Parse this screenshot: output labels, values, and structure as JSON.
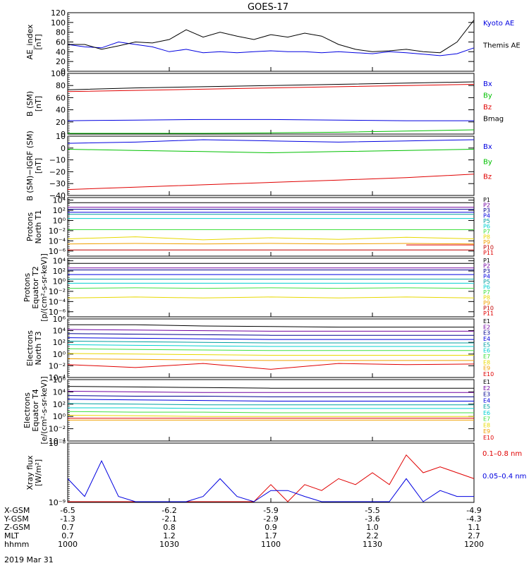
{
  "title": "GOES-17",
  "date_label": "2019 Mar 31",
  "colors": {
    "black": "#000000",
    "blue": "#0000e0",
    "green": "#00c000",
    "red": "#e00000",
    "navy": "#000090",
    "purple": "#7000a0",
    "teal": "#00a0a0",
    "cyan": "#00d0d0",
    "lime": "#40e040",
    "yellow": "#e8d800",
    "orange": "#f0a000",
    "darkred": "#c00000"
  },
  "chart_data": [
    {
      "type": "line",
      "ylabel": [
        "AE_index",
        "[nT]"
      ],
      "yticks": [
        "0",
        "20",
        "40",
        "60",
        "80",
        "100",
        "120"
      ],
      "ylim": [
        0,
        120
      ],
      "x": [
        0,
        5,
        10,
        15,
        20,
        25,
        30,
        35,
        40,
        45,
        50,
        55,
        60,
        65,
        70,
        75,
        80,
        85,
        90,
        95,
        100,
        105,
        110,
        115,
        120
      ],
      "series": [
        {
          "name": "Kyoto AE",
          "color": "blue",
          "values": [
            55,
            50,
            48,
            60,
            55,
            50,
            40,
            45,
            38,
            40,
            38,
            40,
            42,
            40,
            40,
            38,
            40,
            38,
            36,
            40,
            38,
            35,
            32,
            36,
            48
          ]
        },
        {
          "name": "Themis AE",
          "color": "black",
          "values": [
            55,
            55,
            45,
            52,
            60,
            58,
            65,
            85,
            70,
            80,
            72,
            65,
            75,
            70,
            78,
            72,
            55,
            45,
            40,
            42,
            45,
            40,
            38,
            60,
            105
          ]
        }
      ]
    },
    {
      "type": "line",
      "ylabel": [
        "B (SM)",
        "[nT]"
      ],
      "yticks": [
        "0",
        "20",
        "40",
        "60",
        "80",
        "100"
      ],
      "ylim": [
        0,
        100
      ],
      "x": [
        0,
        20,
        40,
        60,
        80,
        100,
        120
      ],
      "series": [
        {
          "name": "Bx",
          "color": "blue",
          "values": [
            22,
            23,
            24,
            24,
            23,
            22,
            22
          ]
        },
        {
          "name": "By",
          "color": "green",
          "values": [
            0,
            0,
            1,
            2,
            3,
            5,
            7
          ]
        },
        {
          "name": "Bz",
          "color": "red",
          "values": [
            70,
            72,
            74,
            76,
            78,
            80,
            82
          ]
        },
        {
          "name": "Bmag",
          "color": "black",
          "values": [
            73,
            76,
            78,
            80,
            82,
            84,
            86
          ]
        }
      ]
    },
    {
      "type": "line",
      "ylabel": [
        "B (SM)−IGRF (SM)",
        "[nT]"
      ],
      "yticks": [
        "−40",
        "−30",
        "−20",
        "−10",
        "0",
        "10"
      ],
      "ylim": [
        -40,
        10
      ],
      "x": [
        0,
        20,
        40,
        60,
        80,
        100,
        120
      ],
      "series": [
        {
          "name": "Bx",
          "color": "blue",
          "values": [
            4,
            5,
            7,
            6,
            5,
            6,
            7
          ]
        },
        {
          "name": "By",
          "color": "green",
          "values": [
            -1,
            -2,
            -3,
            -4,
            -3,
            -2,
            -1
          ]
        },
        {
          "name": "Bz",
          "color": "red",
          "values": [
            -35,
            -33,
            -31,
            -29,
            -27,
            -25,
            -22
          ]
        }
      ]
    },
    {
      "type": "line",
      "scale": "log",
      "ylabel": [
        "Protons",
        "North T1"
      ],
      "yticks": [
        "10⁻⁶",
        "10⁻⁴",
        "10⁻²",
        "10⁰",
        "10²",
        "10⁴"
      ],
      "ylim": [
        -7,
        4.5
      ],
      "x": [
        0,
        20,
        40,
        60,
        80,
        100,
        120
      ],
      "series": [
        {
          "name": "P1",
          "color": "black",
          "values": [
            3.5,
            3.5,
            3.5,
            3.5,
            3.5,
            3.5,
            3.5
          ]
        },
        {
          "name": "P2",
          "color": "purple",
          "values": [
            2.6,
            2.6,
            2.6,
            2.6,
            2.6,
            2.6,
            2.6
          ]
        },
        {
          "name": "P3",
          "color": "navy",
          "values": [
            2.2,
            2.2,
            2.2,
            2.2,
            2.2,
            2.2,
            2.2
          ]
        },
        {
          "name": "P4",
          "color": "blue",
          "values": [
            1.6,
            1.6,
            1.6,
            1.6,
            1.6,
            1.6,
            1.6
          ]
        },
        {
          "name": "P5",
          "color": "teal",
          "values": [
            1.2,
            1.2,
            1.2,
            1.2,
            1.2,
            1.2,
            1.2
          ]
        },
        {
          "name": "P6",
          "color": "cyan",
          "values": [
            0.4,
            0.4,
            0.4,
            0.4,
            0.4,
            0.4,
            0.4
          ]
        },
        {
          "name": "P7",
          "color": "lime",
          "values": [
            -1.8,
            -1.8,
            -1.8,
            -1.8,
            -1.8,
            -1.8,
            -1.8
          ]
        },
        {
          "name": "P8",
          "color": "yellow",
          "values": [
            -3.6,
            -3.2,
            -3.8,
            -3.4,
            -3.7,
            -3.3,
            -3.6
          ]
        },
        {
          "name": "P9",
          "color": "orange",
          "values": [
            -4.6,
            -4.5,
            -4.6,
            -4.5,
            -4.6,
            -4.5,
            -4.6
          ]
        },
        {
          "name": "P10",
          "color": "darkred",
          "values": [
            -5.8,
            -5.8,
            -5.8,
            -5.8,
            -5.8,
            -5.8,
            -5.8
          ]
        },
        {
          "name": "P11",
          "color": "red",
          "values": [
            null,
            null,
            null,
            null,
            null,
            -4.8,
            -4.8
          ]
        }
      ]
    },
    {
      "type": "line",
      "scale": "log",
      "ylabel": [
        "Protons",
        "Equator T2",
        "[p/(cm²-s-sr-keV)]"
      ],
      "yticks": [
        "10⁻⁶",
        "10⁻⁴",
        "10⁻²",
        "10⁰",
        "10²",
        "10⁴"
      ],
      "ylim": [
        -7,
        4.5
      ],
      "x": [
        0,
        20,
        40,
        60,
        80,
        100,
        120
      ],
      "series": [
        {
          "name": "P1",
          "color": "black",
          "values": [
            3.5,
            3.5,
            3.5,
            3.5,
            3.5,
            3.5,
            3.5
          ]
        },
        {
          "name": "P2",
          "color": "purple",
          "values": [
            2.6,
            2.6,
            2.6,
            2.6,
            2.6,
            2.6,
            2.6
          ]
        },
        {
          "name": "P3",
          "color": "navy",
          "values": [
            2.2,
            2.2,
            2.2,
            2.2,
            2.2,
            2.2,
            2.2
          ]
        },
        {
          "name": "P4",
          "color": "blue",
          "values": [
            1.3,
            1.3,
            1.3,
            1.3,
            1.3,
            1.3,
            1.3
          ]
        },
        {
          "name": "P5",
          "color": "teal",
          "values": [
            0.4,
            0.4,
            0.4,
            0.4,
            0.4,
            0.4,
            0.4
          ]
        },
        {
          "name": "P6",
          "color": "cyan",
          "values": [
            -0.4,
            -0.4,
            -0.4,
            -0.4,
            -0.4,
            -0.4,
            -0.4
          ]
        },
        {
          "name": "P7",
          "color": "lime",
          "values": [
            -1.4,
            -1.3,
            -1.4,
            -1.3,
            -1.4,
            -1.3,
            -1.4
          ]
        },
        {
          "name": "P8",
          "color": "yellow",
          "values": [
            -3.3,
            -3.1,
            -3.3,
            -3.1,
            -3.3,
            -3.1,
            -3.3
          ]
        },
        {
          "name": "P9",
          "color": "orange",
          "values": [
            null,
            null,
            null,
            null,
            null,
            null,
            null
          ]
        },
        {
          "name": "P10",
          "color": "darkred",
          "values": [
            null,
            null,
            null,
            null,
            null,
            null,
            null
          ]
        },
        {
          "name": "P11",
          "color": "red",
          "values": [
            null,
            null,
            null,
            null,
            null,
            null,
            null
          ]
        }
      ]
    },
    {
      "type": "line",
      "scale": "log",
      "ylabel": [
        "Electrons",
        "North T3"
      ],
      "yticks": [
        "10⁻⁴",
        "10⁻²",
        "10⁰",
        "10²",
        "10⁴",
        "10⁶"
      ],
      "ylim": [
        -4,
        6
      ],
      "x": [
        0,
        20,
        40,
        60,
        80,
        100,
        120
      ],
      "series": [
        {
          "name": "E1",
          "color": "black",
          "values": [
            5.0,
            5.0,
            4.8,
            4.7,
            4.6,
            4.6,
            4.6
          ]
        },
        {
          "name": "E2",
          "color": "purple",
          "values": [
            4.2,
            4.1,
            4.0,
            3.9,
            3.9,
            3.9,
            3.9
          ]
        },
        {
          "name": "E3",
          "color": "navy",
          "values": [
            3.5,
            3.4,
            3.3,
            3.2,
            3.2,
            3.2,
            3.2
          ]
        },
        {
          "name": "E4",
          "color": "blue",
          "values": [
            2.8,
            2.7,
            2.6,
            2.5,
            2.5,
            2.5,
            2.5
          ]
        },
        {
          "name": "E5",
          "color": "teal",
          "values": [
            2.2,
            2.1,
            2.0,
            1.9,
            1.9,
            1.9,
            1.9
          ]
        },
        {
          "name": "E6",
          "color": "cyan",
          "values": [
            1.6,
            1.5,
            1.4,
            1.3,
            1.3,
            1.3,
            1.3
          ]
        },
        {
          "name": "E7",
          "color": "lime",
          "values": [
            0.9,
            0.8,
            0.7,
            0.6,
            0.6,
            0.6,
            0.6
          ]
        },
        {
          "name": "E8",
          "color": "yellow",
          "values": [
            0.1,
            0.0,
            -0.1,
            -0.2,
            -0.2,
            -0.2,
            -0.2
          ]
        },
        {
          "name": "E9",
          "color": "orange",
          "values": [
            -0.8,
            -0.9,
            -1.0,
            -1.1,
            -1.1,
            -1.1,
            -1.1
          ]
        },
        {
          "name": "E10",
          "color": "red",
          "values": [
            -1.8,
            -2.3,
            -1.6,
            -2.6,
            -1.6,
            -1.8,
            -1.7
          ]
        }
      ]
    },
    {
      "type": "line",
      "scale": "log",
      "ylabel": [
        "Electrons",
        "Equator T4",
        "[e/(cm²-s-sr-keV)]"
      ],
      "yticks": [
        "10⁻⁴",
        "10⁻²",
        "10⁰",
        "10²",
        "10⁴",
        "10⁶"
      ],
      "ylim": [
        -4,
        6
      ],
      "x": [
        0,
        20,
        40,
        60,
        80,
        100,
        120
      ],
      "series": [
        {
          "name": "E1",
          "color": "black",
          "values": [
            4.9,
            4.8,
            4.7,
            4.6,
            4.6,
            4.6,
            4.6
          ]
        },
        {
          "name": "E2",
          "color": "purple",
          "values": [
            4.1,
            4.0,
            3.9,
            3.9,
            3.9,
            3.9,
            3.9
          ]
        },
        {
          "name": "E3",
          "color": "navy",
          "values": [
            3.4,
            3.3,
            3.3,
            3.2,
            3.2,
            3.2,
            3.2
          ]
        },
        {
          "name": "E4",
          "color": "blue",
          "values": [
            2.8,
            2.7,
            2.6,
            2.5,
            2.5,
            2.5,
            2.5
          ]
        },
        {
          "name": "E5",
          "color": "teal",
          "values": [
            2.1,
            2.0,
            1.9,
            1.9,
            1.9,
            1.9,
            1.9
          ]
        },
        {
          "name": "E6",
          "color": "cyan",
          "values": [
            1.4,
            1.4,
            1.3,
            1.3,
            1.3,
            1.3,
            1.3
          ]
        },
        {
          "name": "E7",
          "color": "lime",
          "values": [
            0.8,
            0.7,
            0.7,
            0.6,
            0.6,
            0.6,
            0.6
          ]
        },
        {
          "name": "E8",
          "color": "yellow",
          "values": [
            0.2,
            0.1,
            0.0,
            0.0,
            0.0,
            0.0,
            0.0
          ]
        },
        {
          "name": "E9",
          "color": "orange",
          "values": [
            -0.6,
            -0.6,
            -0.6,
            -0.6,
            -0.6,
            -0.6,
            -0.6
          ]
        },
        {
          "name": "E10",
          "color": "red",
          "values": [
            -0.3,
            -0.3,
            -0.3,
            -0.3,
            -0.3,
            -0.3,
            -0.3
          ]
        }
      ]
    },
    {
      "type": "line",
      "scale": "log",
      "ylabel": [
        "Xray flux",
        "[W/m²]"
      ],
      "yticks": [
        "10⁻⁹",
        "10⁻⁸"
      ],
      "ylim": [
        -9,
        -8
      ],
      "x": [
        0,
        5,
        10,
        15,
        20,
        25,
        30,
        35,
        40,
        45,
        50,
        55,
        60,
        65,
        70,
        75,
        80,
        85,
        90,
        95,
        100,
        105,
        110,
        115,
        120
      ],
      "series": [
        {
          "name": "0.1–0.8 nm",
          "color": "red",
          "values": [
            -9,
            -9,
            -9,
            -9,
            -9,
            -9,
            -9,
            -9,
            -9,
            -9,
            -9,
            -9,
            -8.7,
            -9,
            -8.7,
            -8.8,
            -8.6,
            -8.7,
            -8.5,
            -8.7,
            -8.2,
            -8.5,
            -8.4,
            -8.5,
            -8.6
          ]
        },
        {
          "name": "0.05–0.4 nm",
          "color": "blue",
          "values": [
            -8.6,
            -8.9,
            -8.3,
            -8.9,
            -9,
            -9,
            -9,
            -9,
            -8.9,
            -8.6,
            -8.9,
            -9,
            -8.8,
            -8.8,
            -8.9,
            -9,
            -9,
            -9,
            -9,
            -9,
            -8.6,
            -9,
            -8.8,
            -8.9,
            -8.9
          ]
        }
      ]
    }
  ],
  "x_axis": {
    "rows": [
      {
        "label": "X-GSM",
        "values": [
          "-6.5",
          "-6.2",
          "-5.9",
          "-5.5",
          "-4.9"
        ]
      },
      {
        "label": "Y-GSM",
        "values": [
          "-1.3",
          "-2.1",
          "-2.9",
          "-3.6",
          "-4.3"
        ]
      },
      {
        "label": "Z-GSM",
        "values": [
          "0.7",
          "0.8",
          "0.9",
          "1.0",
          "1.1"
        ]
      },
      {
        "label": "MLT",
        "values": [
          "0.7",
          "1.2",
          "1.7",
          "2.2",
          "2.7"
        ]
      },
      {
        "label": "hhmm",
        "values": [
          "1000",
          "1030",
          "1100",
          "1130",
          "1200"
        ]
      }
    ],
    "positions": [
      0,
      30,
      60,
      90,
      120
    ]
  }
}
